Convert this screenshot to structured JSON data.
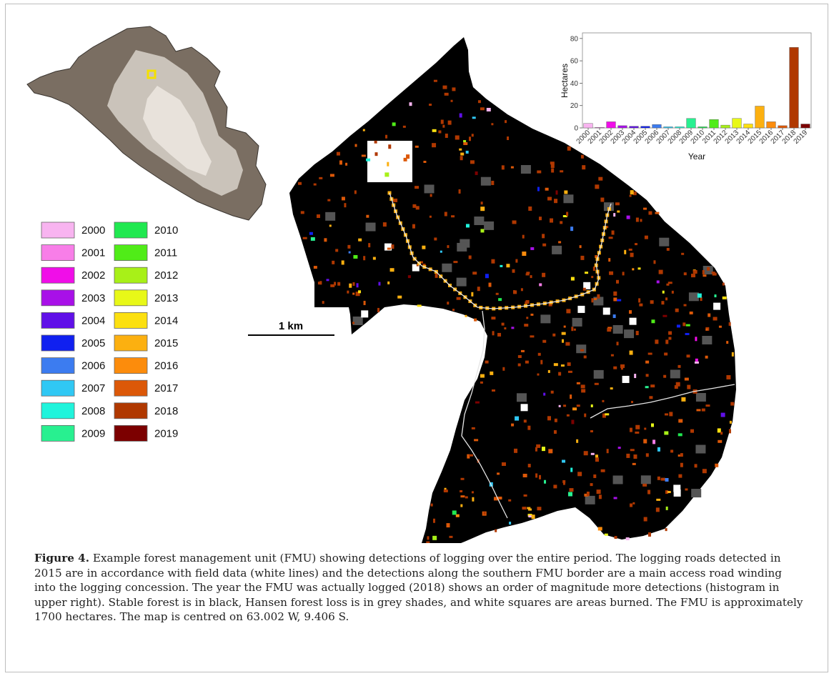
{
  "figure": {
    "label": "Figure 4.",
    "caption": "Example forest management unit (FMU) showing detections of logging over the entire period. The logging roads detected in 2015 are in accordance with field data (white lines) and the detections along the southern FMU border are a main access road winding into the logging concession. The year the FMU was actually logged (2018) shows an order of magnitude more detections (histogram in upper right). Stable forest is in black, Hansen forest loss is in grey shades, and white squares are areas burned. The FMU is approximately 1700 hectares. The map is centred on 63.002 W, 9.406 S."
  },
  "scale_bar": {
    "label": "1 km"
  },
  "legend": [
    {
      "year": "2000",
      "color": "#f8b4f0"
    },
    {
      "year": "2001",
      "color": "#f87ee8"
    },
    {
      "year": "2002",
      "color": "#f00ee8"
    },
    {
      "year": "2003",
      "color": "#a810e8"
    },
    {
      "year": "2004",
      "color": "#6010e8"
    },
    {
      "year": "2005",
      "color": "#1020f0"
    },
    {
      "year": "2006",
      "color": "#3c7cf0"
    },
    {
      "year": "2007",
      "color": "#30c8f4"
    },
    {
      "year": "2008",
      "color": "#20f4dc"
    },
    {
      "year": "2009",
      "color": "#28f090"
    },
    {
      "year": "2010",
      "color": "#20e850"
    },
    {
      "year": "2011",
      "color": "#50ec18"
    },
    {
      "year": "2012",
      "color": "#a8f018"
    },
    {
      "year": "2013",
      "color": "#e8f818"
    },
    {
      "year": "2014",
      "color": "#fce010"
    },
    {
      "year": "2015",
      "color": "#fcb010"
    },
    {
      "year": "2016",
      "color": "#fc8c0c"
    },
    {
      "year": "2017",
      "color": "#dc5808"
    },
    {
      "year": "2018",
      "color": "#b03800"
    },
    {
      "year": "2019",
      "color": "#7c0000"
    }
  ],
  "chart_data": {
    "type": "bar",
    "xlabel": "Year",
    "ylabel": "Hectares",
    "ylim": [
      0,
      85
    ],
    "yticks": [
      0,
      20,
      40,
      60,
      80
    ],
    "grid": false,
    "categories": [
      "2000",
      "2001",
      "2002",
      "2003",
      "2004",
      "2005",
      "2006",
      "2007",
      "2008",
      "2009",
      "2010",
      "2011",
      "2012",
      "2013",
      "2014",
      "2015",
      "2016",
      "2017",
      "2018",
      "2019"
    ],
    "values": [
      4,
      0.5,
      5.5,
      2,
      1.5,
      1.5,
      3,
      1,
      1,
      8.5,
      1,
      7.5,
      2.5,
      8.5,
      3.5,
      19.5,
      5.5,
      2,
      72,
      3.5
    ]
  },
  "colors": {
    "stable_forest": "#000000",
    "hansen_loss": "#555555",
    "burned": "#ffffff",
    "roads": "#e6e6e6"
  }
}
